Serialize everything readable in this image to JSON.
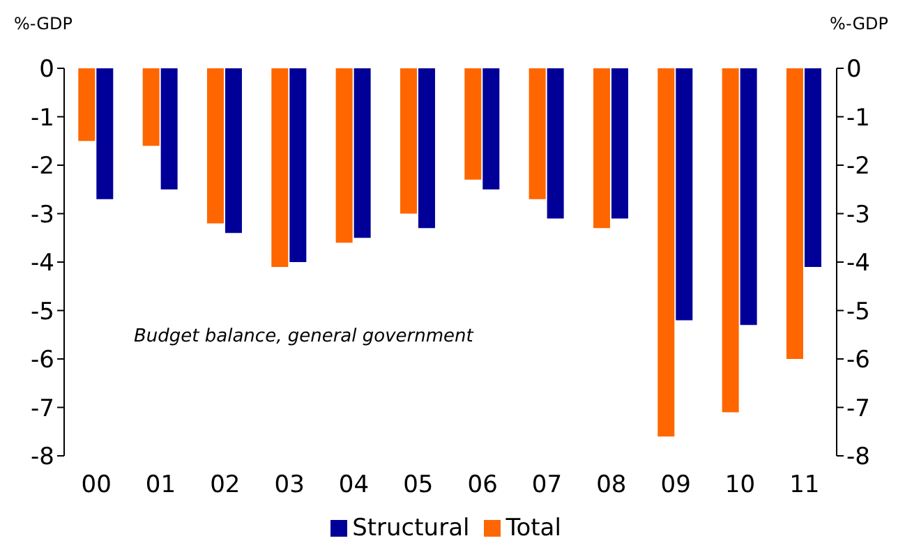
{
  "chart_data": {
    "type": "bar",
    "ylabel": "%-GDP",
    "y2label": "%-GDP",
    "categories": [
      "00",
      "01",
      "02",
      "03",
      "04",
      "05",
      "06",
      "07",
      "08",
      "09",
      "10",
      "11"
    ],
    "series": [
      {
        "name": "Total",
        "color": "#ff6600",
        "values": [
          -1.5,
          -1.6,
          -3.2,
          -4.1,
          -3.6,
          -3.0,
          -2.3,
          -2.7,
          -3.3,
          -7.6,
          -7.1,
          -6.0
        ]
      },
      {
        "name": "Structural",
        "color": "#000099",
        "values": [
          -2.7,
          -2.5,
          -3.4,
          -4.0,
          -3.5,
          -3.3,
          -2.5,
          -3.1,
          -3.1,
          -5.2,
          -5.3,
          -4.1
        ]
      }
    ],
    "ylim": [
      -8,
      0
    ],
    "yticks": [
      -8,
      -7,
      -6,
      -5,
      -4,
      -3,
      -2,
      -1,
      0
    ],
    "y2lim": [
      -8,
      0
    ],
    "y2ticks": [
      -8,
      -7,
      -6,
      -5,
      -4,
      -3,
      -2,
      -1,
      0
    ],
    "annotations": [
      "Budget balance, general government"
    ],
    "grid": false,
    "legend": "bottom"
  }
}
